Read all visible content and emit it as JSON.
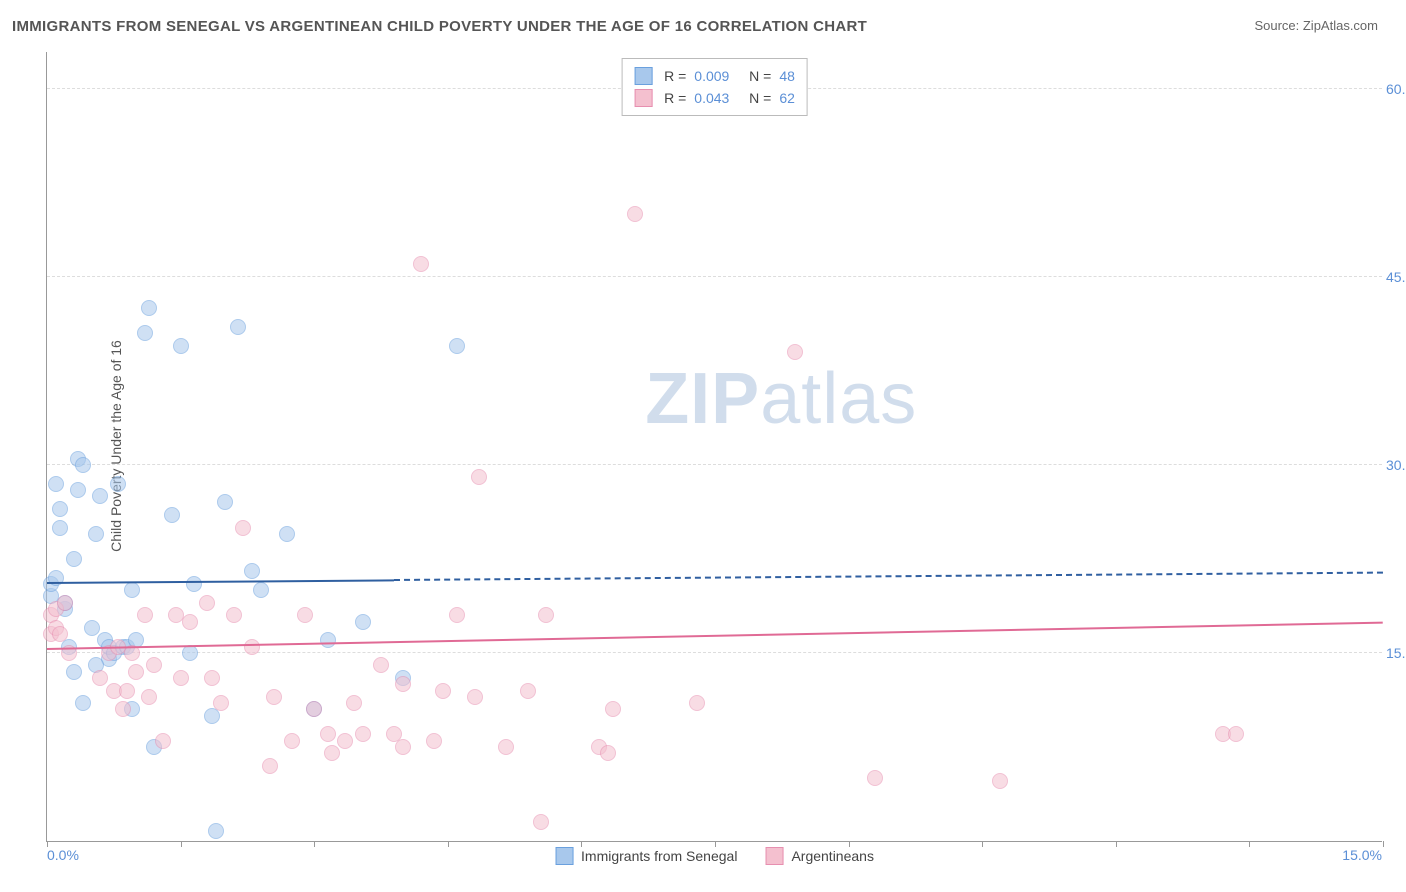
{
  "title": "IMMIGRANTS FROM SENEGAL VS ARGENTINEAN CHILD POVERTY UNDER THE AGE OF 16 CORRELATION CHART",
  "source_label": "Source: ",
  "source_name": "ZipAtlas.com",
  "watermark_a": "ZIP",
  "watermark_b": "atlas",
  "chart": {
    "type": "scatter",
    "ylabel": "Child Poverty Under the Age of 16",
    "x_min": 0.0,
    "x_max": 15.0,
    "y_min": 0.0,
    "y_max": 63.0,
    "x_tick_labels": [
      "0.0%",
      "15.0%"
    ],
    "y_ticks": [
      15.0,
      30.0,
      45.0,
      60.0
    ],
    "y_tick_labels": [
      "15.0%",
      "30.0%",
      "45.0%",
      "60.0%"
    ],
    "x_tick_marks": [
      0,
      1.5,
      3.0,
      4.5,
      6.0,
      7.5,
      9.0,
      10.5,
      12.0,
      13.5,
      15.0
    ],
    "grid_color": "#dddddd",
    "background_color": "#ffffff",
    "marker_radius": 8,
    "marker_border_width": 1.5,
    "series": [
      {
        "name": "Immigrants from Senegal",
        "color_fill": "#a8c8ec",
        "color_border": "#6aa0de",
        "fill_opacity": 0.55,
        "R": "0.009",
        "N": "48",
        "trend": {
          "x1": 0.0,
          "y1": 20.5,
          "x2": 15.0,
          "y2": 21.3,
          "solid_until_x": 3.9,
          "color": "#2f5fa0"
        },
        "points": [
          [
            0.05,
            19.5
          ],
          [
            0.05,
            20.5
          ],
          [
            0.1,
            21.0
          ],
          [
            0.1,
            28.5
          ],
          [
            0.15,
            26.5
          ],
          [
            0.15,
            25.0
          ],
          [
            0.2,
            18.5
          ],
          [
            0.2,
            19.0
          ],
          [
            0.3,
            22.5
          ],
          [
            0.3,
            13.5
          ],
          [
            0.35,
            30.5
          ],
          [
            0.35,
            28.0
          ],
          [
            0.4,
            11.0
          ],
          [
            0.4,
            30.0
          ],
          [
            0.5,
            17.0
          ],
          [
            0.55,
            24.5
          ],
          [
            0.6,
            27.5
          ],
          [
            0.65,
            16.0
          ],
          [
            0.7,
            14.5
          ],
          [
            0.7,
            15.5
          ],
          [
            0.75,
            15.0
          ],
          [
            0.8,
            28.5
          ],
          [
            0.85,
            15.5
          ],
          [
            0.9,
            15.5
          ],
          [
            0.95,
            20.0
          ],
          [
            1.0,
            16.0
          ],
          [
            1.1,
            40.5
          ],
          [
            1.15,
            42.5
          ],
          [
            1.2,
            7.5
          ],
          [
            1.4,
            26.0
          ],
          [
            1.5,
            39.5
          ],
          [
            1.6,
            15.0
          ],
          [
            1.65,
            20.5
          ],
          [
            1.85,
            10.0
          ],
          [
            1.9,
            0.8
          ],
          [
            2.0,
            27.0
          ],
          [
            2.15,
            41.0
          ],
          [
            2.4,
            20.0
          ],
          [
            2.7,
            24.5
          ],
          [
            3.15,
            16.0
          ],
          [
            3.55,
            17.5
          ],
          [
            4.0,
            13.0
          ],
          [
            4.6,
            39.5
          ],
          [
            3.0,
            10.5
          ],
          [
            2.3,
            21.5
          ],
          [
            0.95,
            10.5
          ],
          [
            0.55,
            14.0
          ],
          [
            0.25,
            15.5
          ]
        ]
      },
      {
        "name": "Argentineans",
        "color_fill": "#f4c0cf",
        "color_border": "#e78fb0",
        "fill_opacity": 0.55,
        "R": "0.043",
        "N": "62",
        "trend": {
          "x1": 0.0,
          "y1": 15.2,
          "x2": 15.0,
          "y2": 17.3,
          "solid_until_x": 15.0,
          "color": "#e06a95"
        },
        "points": [
          [
            0.05,
            16.5
          ],
          [
            0.05,
            18.0
          ],
          [
            0.1,
            18.5
          ],
          [
            0.1,
            17.0
          ],
          [
            0.15,
            16.5
          ],
          [
            0.2,
            19.0
          ],
          [
            0.25,
            15.0
          ],
          [
            0.6,
            13.0
          ],
          [
            0.7,
            15.0
          ],
          [
            0.75,
            12.0
          ],
          [
            0.8,
            15.5
          ],
          [
            0.85,
            10.5
          ],
          [
            0.9,
            12.0
          ],
          [
            0.95,
            15.0
          ],
          [
            1.0,
            13.5
          ],
          [
            1.1,
            18.0
          ],
          [
            1.15,
            11.5
          ],
          [
            1.2,
            14.0
          ],
          [
            1.3,
            8.0
          ],
          [
            1.45,
            18.0
          ],
          [
            1.5,
            13.0
          ],
          [
            1.6,
            17.5
          ],
          [
            1.8,
            19.0
          ],
          [
            1.85,
            13.0
          ],
          [
            1.95,
            11.0
          ],
          [
            2.1,
            18.0
          ],
          [
            2.2,
            25.0
          ],
          [
            2.3,
            15.5
          ],
          [
            2.5,
            6.0
          ],
          [
            2.55,
            11.5
          ],
          [
            2.75,
            8.0
          ],
          [
            2.9,
            18.0
          ],
          [
            3.0,
            10.5
          ],
          [
            3.15,
            8.5
          ],
          [
            3.2,
            7.0
          ],
          [
            3.35,
            8.0
          ],
          [
            3.45,
            11.0
          ],
          [
            3.55,
            8.5
          ],
          [
            3.75,
            14.0
          ],
          [
            3.9,
            8.5
          ],
          [
            4.0,
            7.5
          ],
          [
            4.2,
            46.0
          ],
          [
            4.35,
            8.0
          ],
          [
            4.45,
            12.0
          ],
          [
            4.6,
            18.0
          ],
          [
            4.8,
            11.5
          ],
          [
            4.85,
            29.0
          ],
          [
            5.15,
            7.5
          ],
          [
            5.4,
            12.0
          ],
          [
            5.55,
            1.5
          ],
          [
            5.6,
            18.0
          ],
          [
            6.2,
            7.5
          ],
          [
            6.3,
            7.0
          ],
          [
            6.35,
            10.5
          ],
          [
            6.6,
            50.0
          ],
          [
            7.3,
            11.0
          ],
          [
            8.4,
            39.0
          ],
          [
            9.3,
            5.0
          ],
          [
            10.7,
            4.8
          ],
          [
            13.2,
            8.5
          ],
          [
            13.35,
            8.5
          ],
          [
            4.0,
            12.5
          ]
        ]
      }
    ],
    "legend_bottom": [
      {
        "label": "Immigrants from Senegal",
        "fill": "#a8c8ec",
        "border": "#6aa0de"
      },
      {
        "label": "Argentineans",
        "fill": "#f4c0cf",
        "border": "#e78fb0"
      }
    ]
  }
}
